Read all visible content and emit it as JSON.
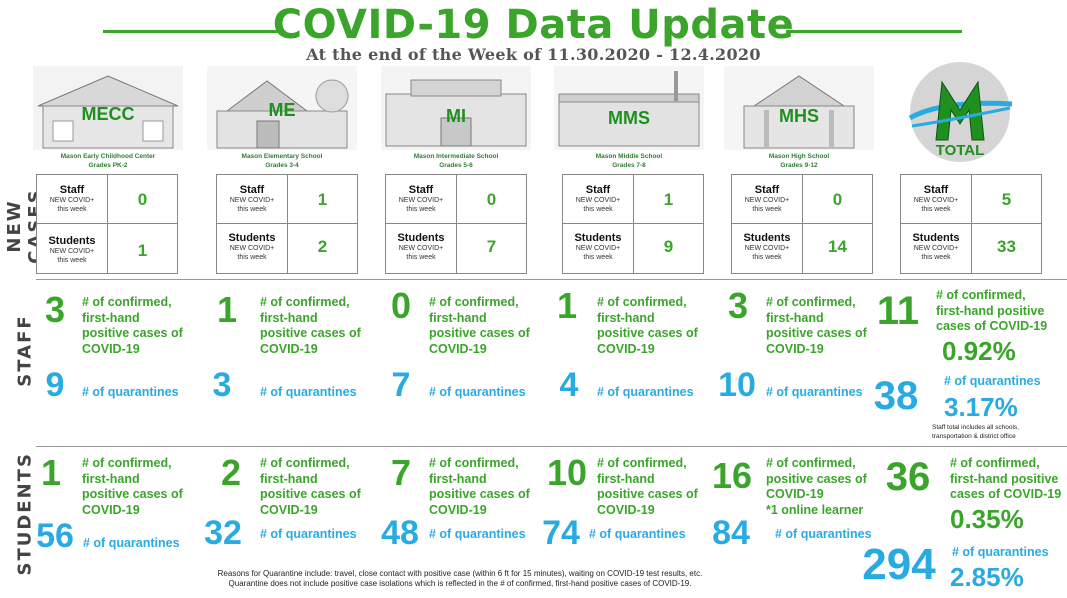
{
  "header": {
    "title": "COVID-19 Data Update",
    "subtitle": "At the end of the Week of 11.30.2020 - 12.4.2020"
  },
  "side_labels": {
    "new_cases": "NEW CASES",
    "staff": "STAFF",
    "students": "STUDENTS"
  },
  "labels": {
    "staff": "Staff",
    "students": "Students",
    "new_covid": "NEW COVID+",
    "this_week": "this week",
    "confirmed_4": [
      "# of confirmed,",
      "first-hand",
      "positive cases of",
      "COVID-19"
    ],
    "confirmed_3": [
      "# of confirmed,",
      "first-hand positive",
      "cases of COVID-19"
    ],
    "hs_confirmed": [
      "# of confirmed,",
      "positive cases of",
      "COVID-19",
      "*1 online learner"
    ],
    "quarantines": "# of quarantines"
  },
  "schools": [
    {
      "abbr": "MECC",
      "name": "Mason Early Childhood Center",
      "grades": "Grades PK-2",
      "new_staff": "0",
      "new_students": "1",
      "staff_confirmed": "3",
      "staff_quarantines": "9",
      "student_confirmed": "1",
      "student_quarantines": "56"
    },
    {
      "abbr": "ME",
      "name": "Mason Elementary School",
      "grades": "Grades 3-4",
      "new_staff": "1",
      "new_students": "2",
      "staff_confirmed": "1",
      "staff_quarantines": "3",
      "student_confirmed": "2",
      "student_quarantines": "32"
    },
    {
      "abbr": "MI",
      "name": "Mason Intermediate  School",
      "grades": "Grades 5-6",
      "new_staff": "0",
      "new_students": "7",
      "staff_confirmed": "0",
      "staff_quarantines": "7",
      "student_confirmed": "7",
      "student_quarantines": "48"
    },
    {
      "abbr": "MMS",
      "name": "Mason Middle School",
      "grades": "Grades 7-8",
      "new_staff": "1",
      "new_students": "9",
      "staff_confirmed": "1",
      "staff_quarantines": "4",
      "student_confirmed": "10",
      "student_quarantines": "74"
    },
    {
      "abbr": "MHS",
      "name": "Mason High School",
      "grades": "Grades 9-12",
      "new_staff": "0",
      "new_students": "14",
      "staff_confirmed": "3",
      "staff_quarantines": "10",
      "student_confirmed": "16",
      "student_quarantines": "84"
    }
  ],
  "total": {
    "logo_letter": "M",
    "label": "TOTAL",
    "new_staff": "5",
    "new_students": "33",
    "staff_confirmed": "11",
    "staff_confirmed_pct": "0.92%",
    "staff_quarantines": "38",
    "staff_quarantines_pct": "3.17%",
    "staff_note": [
      "Staff total includes all schools,",
      "transportation & district office"
    ],
    "student_confirmed": "36",
    "student_confirmed_pct": "0.35%",
    "student_quarantines": "294",
    "student_quarantines_pct": "2.85%"
  },
  "footer": {
    "line1": "Reasons for Quarantine include: travel, close contact with positive case (within 6 ft for 15 minutes), waiting on COVID-19 test results, etc.",
    "line2": "Quarantine does not include positive case isolations which is reflected in the # of confirmed, first-hand positive cases of COVID-19."
  },
  "colors": {
    "green": "#3aa52a",
    "blue": "#29abe2",
    "gray": "#555555"
  }
}
